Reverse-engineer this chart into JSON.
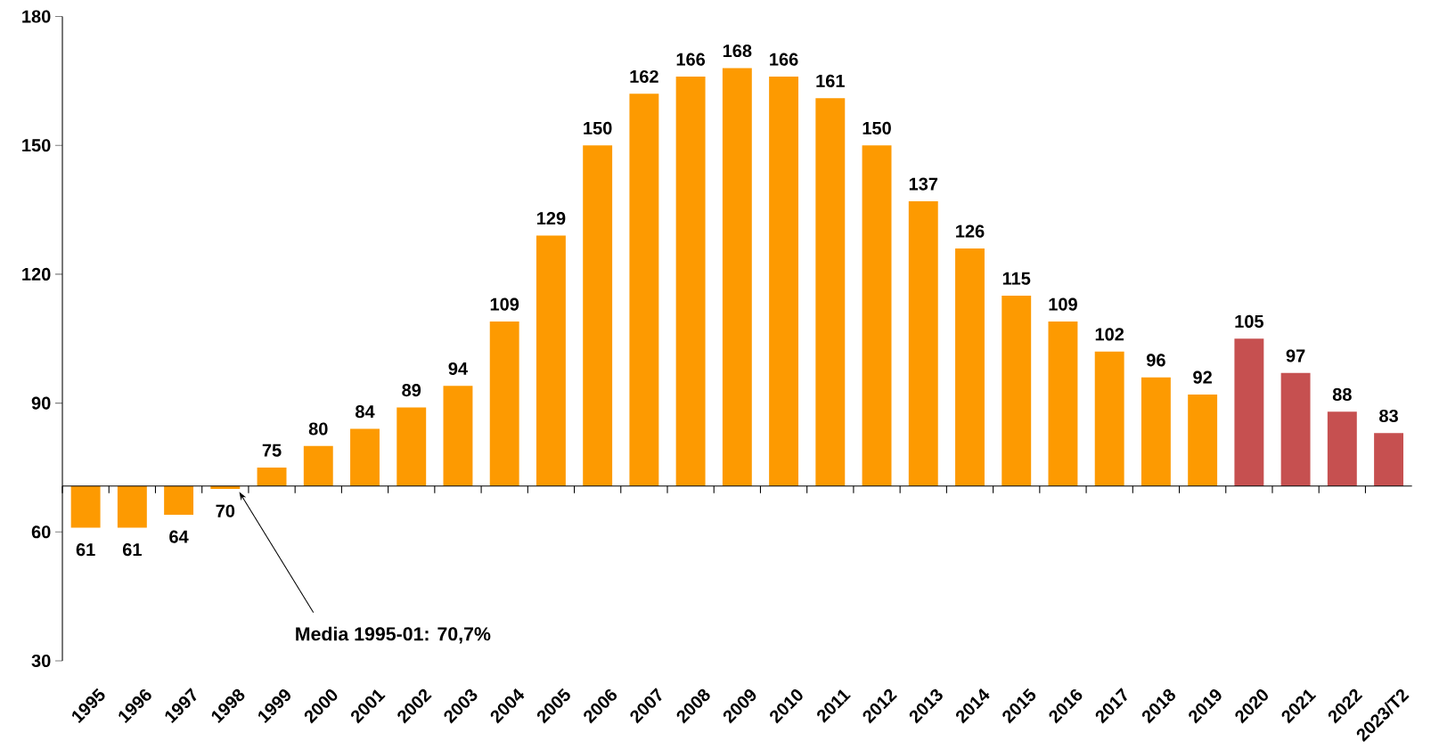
{
  "chart_data": {
    "type": "bar",
    "categories": [
      "1995",
      "1996",
      "1997",
      "1998",
      "1999",
      "2000",
      "2001",
      "2002",
      "2003",
      "2004",
      "2005",
      "2006",
      "2007",
      "2008",
      "2009",
      "2010",
      "2011",
      "2012",
      "2013",
      "2014",
      "2015",
      "2016",
      "2017",
      "2018",
      "2019",
      "2020",
      "2021",
      "2022",
      "2023/T2"
    ],
    "values": [
      -9.7,
      -9.7,
      -6.7,
      -0.7,
      4.3,
      9.3,
      13.3,
      18.3,
      23.3,
      38.3,
      58.3,
      79.3,
      91.3,
      95.3,
      97.3,
      95.3,
      90.3,
      79.3,
      66.3,
      55.3,
      44.3,
      38.3,
      31.3,
      25.3,
      21.3,
      34.3,
      26.3,
      17.3,
      12.3
    ],
    "base": [
      70.7,
      70.7,
      70.7,
      70.7,
      70.7,
      70.7,
      70.7,
      70.7,
      70.7,
      70.7,
      70.7,
      70.7,
      70.7,
      70.7,
      70.7,
      70.7,
      70.7,
      70.7,
      70.7,
      70.7,
      70.7,
      70.7,
      70.7,
      70.7,
      70.7,
      70.7,
      70.7,
      70.7,
      70.7
    ],
    "colors": [
      "#fd9a01",
      "#fd9a01",
      "#fd9a01",
      "#fd9a01",
      "#fd9a01",
      "#fd9a01",
      "#fd9a01",
      "#fd9a01",
      "#fd9a01",
      "#fd9a01",
      "#fd9a01",
      "#fd9a01",
      "#fd9a01",
      "#fd9a01",
      "#fd9a01",
      "#fd9a01",
      "#fd9a01",
      "#fd9a01",
      "#fd9a01",
      "#fd9a01",
      "#fd9a01",
      "#fd9a01",
      "#fd9a01",
      "#fd9a01",
      "#fd9a01",
      "#c65050",
      "#c65050",
      "#c65050",
      "#c65050"
    ],
    "value_labels": [
      "61",
      "61",
      "64",
      "70",
      "75",
      "80",
      "84",
      "89",
      "94",
      "109",
      "129",
      "150",
      "162",
      "166",
      "168",
      "166",
      "161",
      "150",
      "137",
      "126",
      "115",
      "109",
      "102",
      "96",
      "92",
      "105",
      "97",
      "88",
      "83"
    ],
    "ylim": [
      30,
      180
    ],
    "yticks": [
      30,
      60,
      90,
      120,
      150,
      180
    ],
    "ref_lines": [
      {
        "axis": "y",
        "value": 70.7,
        "label": "Media 1995-01: 70,7%",
        "color": "#000000"
      }
    ]
  }
}
